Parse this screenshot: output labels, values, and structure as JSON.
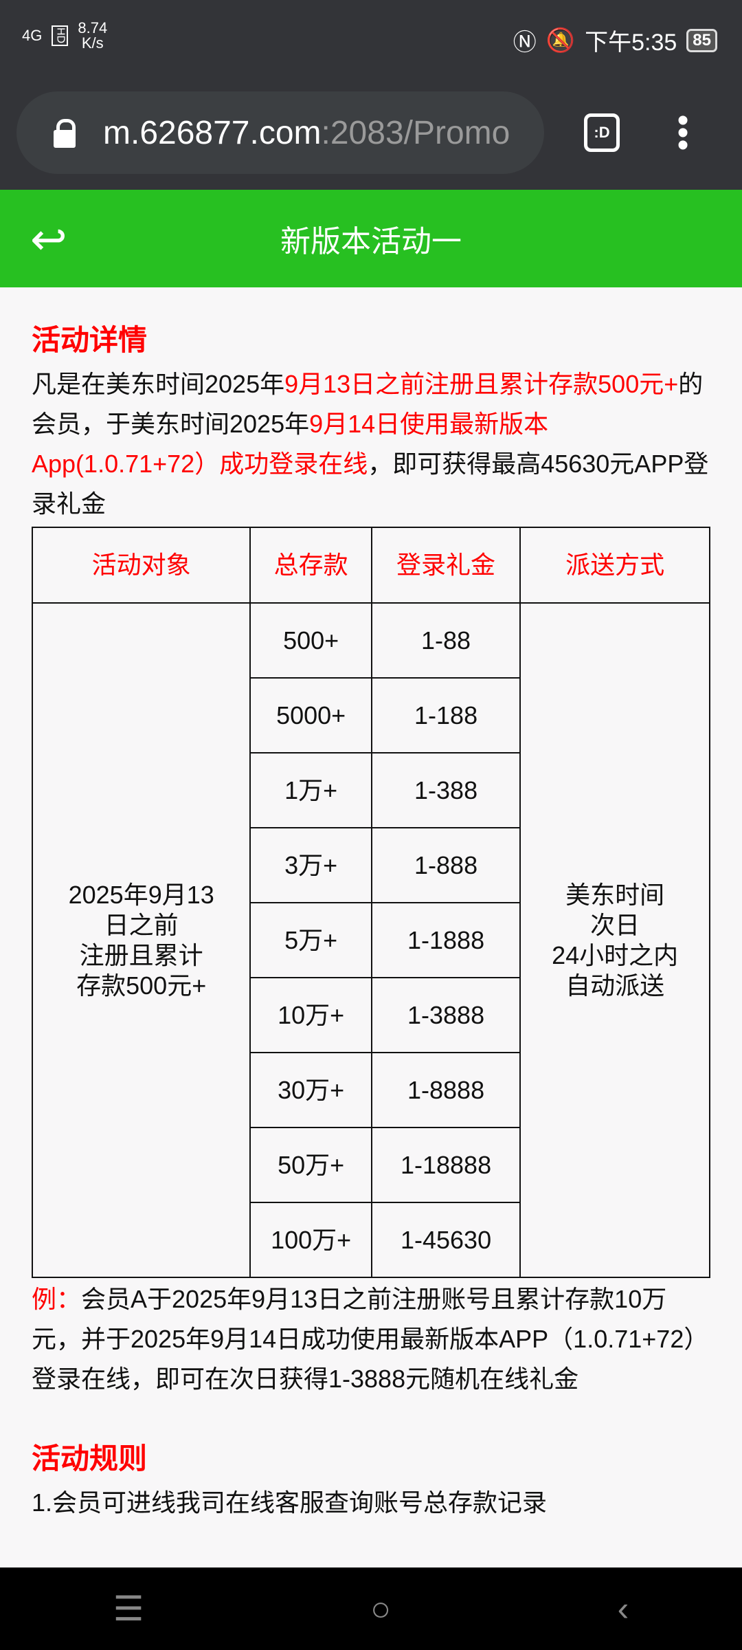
{
  "status_bar": {
    "network": "4G",
    "hd": "HD",
    "speed_value": "8.74",
    "speed_unit": "K/s",
    "time": "下午5:35",
    "battery": "85"
  },
  "browser": {
    "url_host": "m.626877.com",
    "url_rest": ":2083/Promo",
    "tab_label": ":D"
  },
  "header": {
    "title": "新版本活动一"
  },
  "details": {
    "title": "活动详情",
    "p1": "凡是在美东时间2025年",
    "p1_red": "9月13日之前注册且累计存款500元+",
    "p2": "的会员，于美东时间2025年",
    "p2_red": "9月14日使用最新版本App(1.0.71+72）成功登录在线",
    "p3": "，即可获得最高45630元APP登录礼金"
  },
  "table": {
    "headers": [
      "活动对象",
      "总存款",
      "登录礼金",
      "派送方式"
    ],
    "target": [
      "2025年9月13",
      "日之前",
      "注册且累计",
      "存款500元+"
    ],
    "delivery": [
      "美东时间",
      "次日",
      "24小时之内",
      "自动派送"
    ],
    "rows": [
      [
        "500+",
        "1-88"
      ],
      [
        "5000+",
        "1-188"
      ],
      [
        "1万+",
        "1-388"
      ],
      [
        "3万+",
        "1-888"
      ],
      [
        "5万+",
        "1-1888"
      ],
      [
        "10万+",
        "1-3888"
      ],
      [
        "30万+",
        "1-8888"
      ],
      [
        "50万+",
        "1-18888"
      ],
      [
        "100万+",
        "1-45630"
      ]
    ]
  },
  "example": {
    "label": "例：",
    "text": "会员A于2025年9月13日之前注册账号且累计存款10万元，并于2025年9月14日成功使用最新版本APP（1.0.71+72）登录在线，即可在次日获得1-3888元随机在线礼金"
  },
  "rules": {
    "title": "活动规则",
    "items": [
      "1.会员可进线我司在线客服查询账号总存款记录"
    ]
  }
}
